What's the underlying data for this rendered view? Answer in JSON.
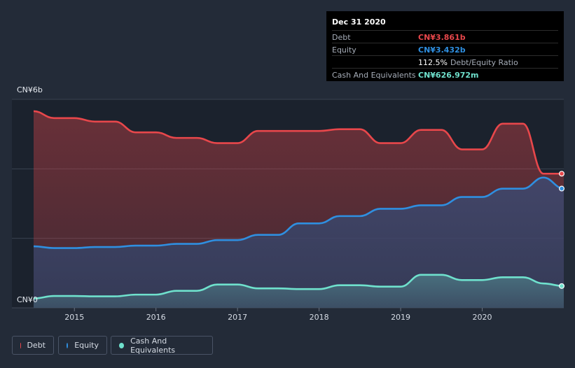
{
  "tooltip": {
    "date": "Dec 31 2020",
    "debt_label": "Debt",
    "debt_value": "CN¥3.861b",
    "equity_label": "Equity",
    "equity_value": "CN¥3.432b",
    "ratio_value": "112.5%",
    "ratio_label": "Debt/Equity Ratio",
    "cash_label": "Cash And Equivalents",
    "cash_value": "CN¥626.972m"
  },
  "colors": {
    "debt": "#e8474b",
    "equity": "#2f8fe0",
    "cash": "#6fe1cd",
    "background": "#232b38",
    "plot_bg": "#1b222d"
  },
  "legend": [
    {
      "label": "Debt",
      "color": "#e8474b"
    },
    {
      "label": "Equity",
      "color": "#2f8fe0"
    },
    {
      "label": "Cash And Equivalents",
      "color": "#6fe1cd"
    }
  ],
  "chart_data": {
    "type": "area",
    "y_tick_labels": [
      "CN¥6b",
      "CN¥0"
    ],
    "ylim": [
      0,
      6
    ],
    "y_unit": "CN¥ billions",
    "xlim": [
      2014.5,
      2021.0
    ],
    "x_tick_labels": [
      "2015",
      "2016",
      "2017",
      "2018",
      "2019",
      "2020"
    ],
    "x_tick_values": [
      2015,
      2016,
      2017,
      2018,
      2019,
      2020
    ],
    "grid": true,
    "legend_position": "bottom-left",
    "series": [
      {
        "name": "Debt",
        "x": [
          2014.5,
          2014.75,
          2015.0,
          2015.25,
          2015.5,
          2015.75,
          2016.0,
          2016.25,
          2016.5,
          2016.75,
          2017.0,
          2017.25,
          2017.5,
          2017.75,
          2018.0,
          2018.25,
          2018.5,
          2018.75,
          2019.0,
          2019.25,
          2019.5,
          2019.75,
          2020.0,
          2020.25,
          2020.5,
          2020.75,
          2021.0
        ],
        "values": [
          5.66,
          5.46,
          5.46,
          5.36,
          5.36,
          5.05,
          5.05,
          4.89,
          4.89,
          4.74,
          4.74,
          5.09,
          5.09,
          5.09,
          5.09,
          5.14,
          5.14,
          4.74,
          4.74,
          5.12,
          5.12,
          4.56,
          4.56,
          5.3,
          5.3,
          3.861,
          3.861
        ]
      },
      {
        "name": "Equity",
        "x": [
          2014.5,
          2014.75,
          2015.0,
          2015.25,
          2015.5,
          2015.75,
          2016.0,
          2016.25,
          2016.5,
          2016.75,
          2017.0,
          2017.25,
          2017.5,
          2017.75,
          2018.0,
          2018.25,
          2018.5,
          2018.75,
          2019.0,
          2019.25,
          2019.5,
          2019.75,
          2020.0,
          2020.25,
          2020.5,
          2020.75,
          2021.0
        ],
        "values": [
          1.77,
          1.72,
          1.72,
          1.75,
          1.75,
          1.79,
          1.79,
          1.84,
          1.84,
          1.95,
          1.95,
          2.1,
          2.1,
          2.43,
          2.43,
          2.64,
          2.64,
          2.85,
          2.85,
          2.95,
          2.95,
          3.19,
          3.19,
          3.43,
          3.43,
          3.75,
          3.432
        ]
      },
      {
        "name": "Cash And Equivalents",
        "x": [
          2014.5,
          2014.75,
          2015.0,
          2015.25,
          2015.5,
          2015.75,
          2016.0,
          2016.25,
          2016.5,
          2016.75,
          2017.0,
          2017.25,
          2017.5,
          2017.75,
          2018.0,
          2018.25,
          2018.5,
          2018.75,
          2019.0,
          2019.25,
          2019.5,
          2019.75,
          2020.0,
          2020.25,
          2020.5,
          2020.75,
          2021.0
        ],
        "values": [
          0.27,
          0.34,
          0.34,
          0.33,
          0.33,
          0.38,
          0.38,
          0.49,
          0.49,
          0.67,
          0.67,
          0.56,
          0.56,
          0.54,
          0.54,
          0.65,
          0.65,
          0.61,
          0.61,
          0.95,
          0.95,
          0.8,
          0.8,
          0.88,
          0.88,
          0.7,
          0.627
        ]
      }
    ]
  }
}
